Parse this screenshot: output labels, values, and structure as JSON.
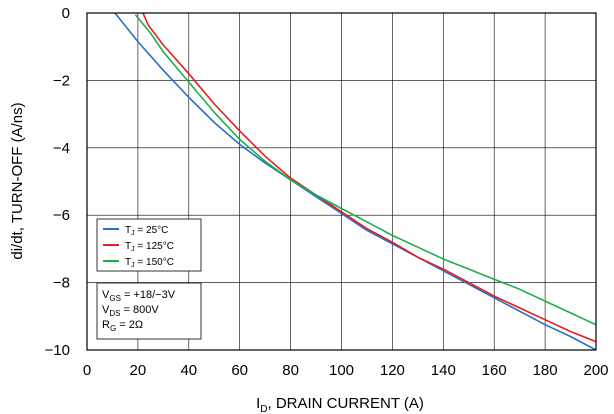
{
  "chart_data": {
    "type": "line",
    "xlabel": {
      "base": "I",
      "sub": "D",
      "rest": ", DRAIN CURRENT  (A)"
    },
    "ylabel": "di/dt, TURN-OFF  (A/ns)",
    "xlim": [
      0,
      200
    ],
    "ylim": [
      -10,
      0
    ],
    "xticks": [
      0,
      20,
      40,
      60,
      80,
      100,
      120,
      140,
      160,
      180,
      200
    ],
    "yticks": [
      0,
      -2,
      -4,
      -6,
      -8,
      -10
    ],
    "ytick_labels": [
      "0",
      "−2",
      "−4",
      "−6",
      "−8",
      "−10"
    ],
    "grid": true,
    "series": [
      {
        "name": "T_J = 25°C",
        "label_base": "T",
        "label_sub": "J",
        "label_rest": " = 25°C",
        "color": "#2a6fc4",
        "x": [
          11,
          20,
          30,
          40,
          50,
          60,
          70,
          80,
          90,
          100,
          110,
          120,
          130,
          140,
          150,
          160,
          170,
          180,
          190,
          200
        ],
        "y": [
          0,
          -0.85,
          -1.7,
          -2.5,
          -3.25,
          -3.9,
          -4.45,
          -4.95,
          -5.45,
          -5.95,
          -6.45,
          -6.85,
          -7.25,
          -7.65,
          -8.05,
          -8.45,
          -8.85,
          -9.25,
          -9.6,
          -10.0
        ]
      },
      {
        "name": "T_J = 125°C",
        "label_base": "T",
        "label_sub": "J",
        "label_rest": " = 125°C",
        "color": "#e02020",
        "x": [
          22,
          24,
          30,
          40,
          50,
          60,
          70,
          80,
          90,
          100,
          110,
          120,
          130,
          140,
          150,
          160,
          170,
          180,
          190,
          200
        ],
        "y": [
          0,
          -0.35,
          -0.95,
          -1.8,
          -2.7,
          -3.5,
          -4.25,
          -4.9,
          -5.4,
          -5.9,
          -6.4,
          -6.8,
          -7.25,
          -7.6,
          -8.0,
          -8.4,
          -8.75,
          -9.1,
          -9.45,
          -9.75
        ]
      },
      {
        "name": "T_J = 150°C",
        "label_base": "T",
        "label_sub": "J",
        "label_rest": " = 150°C",
        "color": "#1fae4c",
        "x": [
          19,
          25,
          30,
          40,
          50,
          60,
          70,
          80,
          90,
          100,
          110,
          120,
          130,
          140,
          150,
          160,
          170,
          180,
          190,
          200
        ],
        "y": [
          -0.05,
          -0.6,
          -1.15,
          -2.05,
          -2.95,
          -3.75,
          -4.4,
          -4.95,
          -5.4,
          -5.8,
          -6.2,
          -6.6,
          -6.95,
          -7.3,
          -7.6,
          -7.9,
          -8.2,
          -8.55,
          -8.9,
          -9.25
        ]
      }
    ],
    "legend_position": "lower-left",
    "conditions": [
      {
        "base": "V",
        "sub": "GS",
        "rest": " = +18/−3V"
      },
      {
        "base": "V",
        "sub": "DS",
        "rest": " = 800V"
      },
      {
        "base": "R",
        "sub": "G",
        "rest": "  = 2Ω"
      }
    ],
    "colors": {
      "frame": "#000000",
      "grid": "#000000",
      "legend_border": "#000000"
    }
  }
}
